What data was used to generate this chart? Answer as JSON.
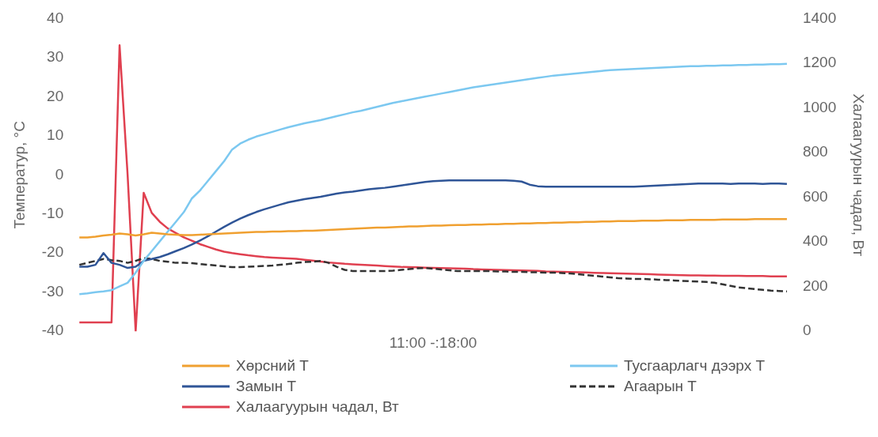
{
  "chart_data": {
    "type": "line",
    "xlabel": "11:00 -:18:00",
    "ylabel": "Температур, °C",
    "y2label": "Халаагуурын чадал, Вт",
    "categories": [
      null,
      null,
      null,
      null,
      null,
      null,
      null,
      null,
      null,
      null,
      null,
      null,
      null,
      null,
      null,
      null,
      null,
      null,
      null,
      null,
      null,
      null,
      null,
      null,
      null,
      null,
      null,
      null,
      null,
      null,
      null,
      null,
      null,
      null,
      null,
      null,
      null,
      null,
      null,
      null,
      null,
      null,
      null,
      null,
      null,
      null,
      null,
      null,
      null,
      null,
      null,
      null,
      null,
      null,
      null,
      null,
      null,
      null,
      null,
      null,
      null,
      null,
      null,
      null,
      null,
      null,
      null,
      null,
      null,
      null,
      null,
      null,
      null,
      null,
      null,
      null,
      null,
      null,
      null,
      null,
      null,
      null,
      null,
      null,
      null,
      null,
      null,
      null,
      null
    ],
    "ylim": [
      -40,
      40
    ],
    "yticks": [
      -40,
      -30,
      -20,
      -10,
      0,
      10,
      20,
      30,
      40
    ],
    "y2lim": [
      0,
      1400
    ],
    "y2ticks": [
      0,
      200,
      400,
      600,
      800,
      1000,
      1200,
      1400
    ],
    "grid": false,
    "legend": "bottom",
    "tick_labels": "y",
    "marker": "none",
    "series": [
      {
        "name": "Хөрсний Т",
        "color": "#f0a030",
        "line_style": "solid",
        "values": [
          -16,
          -16,
          -15.8,
          -15.5,
          -15.3,
          -15,
          -15.2,
          -15.5,
          -15.2,
          -14.8,
          -15,
          -15.2,
          -15.3,
          -15.4,
          -15.4,
          -15.3,
          -15.2,
          -15.1,
          -15,
          -14.9,
          -14.8,
          -14.7,
          -14.6,
          -14.6,
          -14.5,
          -14.5,
          -14.4,
          -14.4,
          -14.3,
          -14.3,
          -14.2,
          -14.1,
          -14,
          -13.9,
          -13.8,
          -13.7,
          -13.6,
          -13.5,
          -13.5,
          -13.4,
          -13.3,
          -13.2,
          -13.2,
          -13.1,
          -13,
          -13,
          -12.9,
          -12.8,
          -12.8,
          -12.7,
          -12.7,
          -12.6,
          -12.6,
          -12.5,
          -12.5,
          -12.4,
          -12.4,
          -12.3,
          -12.3,
          -12.2,
          -12.2,
          -12.1,
          -12.1,
          -12,
          -12,
          -11.9,
          -11.9,
          -11.8,
          -11.8,
          -11.8,
          -11.7,
          -11.7,
          -11.7,
          -11.6,
          -11.6,
          -11.6,
          -11.5,
          -11.5,
          -11.5,
          -11.5,
          -11.4,
          -11.4,
          -11.4,
          -11.4,
          -11.3,
          -11.3,
          -11.3,
          -11.3,
          -11.3
        ]
      },
      {
        "name": "Тусгаарлагч дээрх Т",
        "color": "#7cc8f0",
        "line_style": "solid",
        "values": [
          -30.5,
          -30.3,
          -30,
          -29.8,
          -29.5,
          -28.5,
          -27.6,
          -25,
          -22,
          -19.5,
          -17,
          -14.5,
          -12,
          -9.5,
          -6,
          -4,
          -1.5,
          1,
          3.5,
          6.5,
          8,
          9,
          9.8,
          10.4,
          11,
          11.6,
          12.2,
          12.7,
          13.2,
          13.6,
          14,
          14.5,
          15,
          15.5,
          16,
          16.4,
          16.9,
          17.4,
          17.9,
          18.4,
          18.8,
          19.2,
          19.6,
          20,
          20.4,
          20.8,
          21.2,
          21.6,
          22,
          22.4,
          22.7,
          23,
          23.3,
          23.6,
          23.9,
          24.2,
          24.5,
          24.8,
          25.1,
          25.4,
          25.6,
          25.8,
          26,
          26.2,
          26.4,
          26.6,
          26.8,
          26.9,
          27,
          27.1,
          27.2,
          27.3,
          27.4,
          27.5,
          27.6,
          27.7,
          27.8,
          27.8,
          27.9,
          27.9,
          28,
          28,
          28.1,
          28.1,
          28.2,
          28.2,
          28.3,
          28.3,
          28.4
        ]
      },
      {
        "name": "Замын Т",
        "color": "#2f5597",
        "line_style": "solid",
        "values": [
          -23.5,
          -23.5,
          -23,
          -20,
          -22.5,
          -23,
          -23.8,
          -23.5,
          -22,
          -21.5,
          -21,
          -20.3,
          -19.5,
          -18.7,
          -17.8,
          -16.8,
          -15.7,
          -14.5,
          -13.3,
          -12.2,
          -11.2,
          -10.3,
          -9.5,
          -8.8,
          -8.2,
          -7.6,
          -7,
          -6.6,
          -6.2,
          -5.9,
          -5.6,
          -5.2,
          -4.8,
          -4.5,
          -4.3,
          -4,
          -3.7,
          -3.5,
          -3.3,
          -3,
          -2.7,
          -2.4,
          -2.1,
          -1.8,
          -1.6,
          -1.5,
          -1.4,
          -1.4,
          -1.4,
          -1.4,
          -1.4,
          -1.4,
          -1.4,
          -1.4,
          -1.5,
          -1.7,
          -2.5,
          -2.9,
          -3,
          -3,
          -3,
          -3,
          -3,
          -3,
          -3,
          -3,
          -3,
          -3,
          -3,
          -3,
          -2.9,
          -2.8,
          -2.7,
          -2.6,
          -2.5,
          -2.4,
          -2.3,
          -2.2,
          -2.2,
          -2.2,
          -2.2,
          -2.3,
          -2.2,
          -2.2,
          -2.2,
          -2.3,
          -2.2,
          -2.2,
          -2.3
        ]
      },
      {
        "name": "Агаарын Т",
        "color": "#333333",
        "line_style": "dashed",
        "values": [
          -23,
          -22.5,
          -22,
          -21.5,
          -21.8,
          -22,
          -22.5,
          -22,
          -21.3,
          -21.5,
          -22,
          -22.2,
          -22.5,
          -22.5,
          -22.6,
          -22.8,
          -23,
          -23.2,
          -23.4,
          -23.6,
          -23.6,
          -23.5,
          -23.4,
          -23.3,
          -23.2,
          -23,
          -22.8,
          -22.5,
          -22.3,
          -22.2,
          -22,
          -22.5,
          -23.5,
          -24.3,
          -24.6,
          -24.6,
          -24.6,
          -24.6,
          -24.6,
          -24.5,
          -24.3,
          -24.1,
          -23.9,
          -23.8,
          -24,
          -24.2,
          -24.4,
          -24.6,
          -24.6,
          -24.6,
          -24.6,
          -24.6,
          -24.7,
          -24.7,
          -24.8,
          -24.8,
          -24.9,
          -24.9,
          -25,
          -25,
          -25.1,
          -25.2,
          -25.4,
          -25.6,
          -25.8,
          -26,
          -26.2,
          -26.4,
          -26.5,
          -26.6,
          -26.6,
          -26.7,
          -26.8,
          -26.9,
          -27,
          -27.1,
          -27.2,
          -27.3,
          -27.4,
          -27.6,
          -28,
          -28.4,
          -28.8,
          -29,
          -29.2,
          -29.4,
          -29.6,
          -29.7,
          -29.8
        ]
      },
      {
        "name": "Халаагуурын чадал, Вт",
        "color": "#e04050",
        "line_style": "solid",
        "axis": "y2",
        "values": [
          40,
          40,
          40,
          40,
          40,
          1280,
          700,
          0,
          620,
          530,
          490,
          460,
          440,
          420,
          405,
          390,
          378,
          366,
          356,
          350,
          345,
          340,
          336,
          332,
          330,
          328,
          326,
          324,
          320,
          316,
          312,
          308,
          305,
          302,
          300,
          298,
          296,
          294,
          292,
          290,
          288,
          287,
          286,
          285,
          284,
          283,
          282,
          281,
          280,
          278,
          277,
          276,
          275,
          274,
          273,
          272,
          271,
          270,
          268,
          267,
          266,
          265,
          264,
          263,
          262,
          261,
          260,
          259,
          258,
          257,
          256,
          255,
          254,
          253,
          252,
          251,
          250,
          250,
          249,
          249,
          248,
          248,
          248,
          247,
          247,
          247,
          246,
          246,
          246
        ]
      }
    ]
  }
}
